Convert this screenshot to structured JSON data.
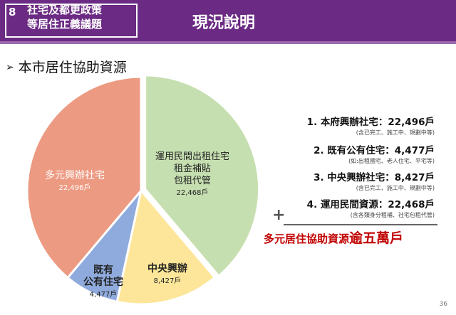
{
  "header": {
    "number": "8",
    "topic_line1": "社宅及都更政策",
    "topic_line2": "等居住正義議題",
    "title": "現況說明",
    "bg_color": "#6b2a83"
  },
  "section": {
    "bullet_icon": "arrow-bullet-icon",
    "title": "本市居住協助資源"
  },
  "chart_data": {
    "type": "pie",
    "slices": [
      {
        "name": "運用民間出租住宅\n租金補貼\n包租代管",
        "value": 22468,
        "label_value": "22,468戶",
        "color": "#c6dfb0"
      },
      {
        "name": "中央興辦",
        "value": 8427,
        "label_value": "8,427戶",
        "color": "#fde699"
      },
      {
        "name": "既有\n公有住宅",
        "value": 4477,
        "label_value": "4,477戶",
        "color": "#8faadc"
      },
      {
        "name": "多元興辦社宅",
        "value": 22496,
        "label_value": "22,496戶",
        "color": "#ed9a82"
      }
    ]
  },
  "pie_labels": {
    "private_l1": "運用民間出租住宅",
    "private_l2": "租金補貼",
    "private_l3": "包租代管",
    "private_val": "22,468戶",
    "central_l1": "中央興辦",
    "central_val": "8,427戶",
    "public_l1": "既有",
    "public_l2": "公有住宅",
    "public_val": "4,477戶",
    "city_l1": "多元興辦社宅",
    "city_val": "22,496戶"
  },
  "list": [
    {
      "main": "1.  本府興辦社宅：22,496戶",
      "note": "(含已完工、施工中、規劃中等)"
    },
    {
      "main": "2.  既有公有住宅：4,477戶",
      "note": "(如:出租國宅、老人住宅、平宅等)"
    },
    {
      "main": "3.  中央興辦社宅：8,427戶",
      "note": "(含已完工、施工中、規劃中等)"
    },
    {
      "main": "4.  運用民間資源：22,468戶",
      "note": "(含各類身分租補、社宅包租代管)"
    }
  ],
  "summary": {
    "plus": "+",
    "text": "多元居住協助資源",
    "emphasis": "逾五萬戶",
    "color": "#c00000"
  },
  "page_number": "36"
}
